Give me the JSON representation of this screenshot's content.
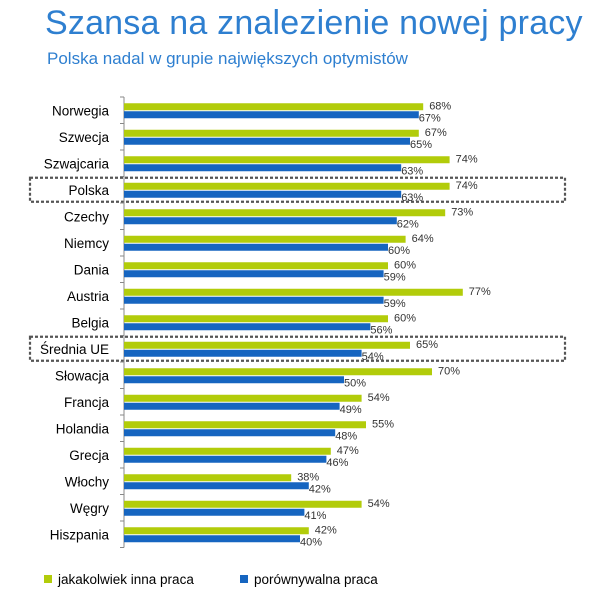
{
  "title": "Szansa na znalezienie nowej pracy",
  "subtitle": "Polska nadal w grupie największych optymistów",
  "colors": {
    "green": "#b2cc0a",
    "blue": "#1665c0",
    "title": "#2e7fd0"
  },
  "chart_data": {
    "type": "bar",
    "orientation": "horizontal",
    "categories": [
      "Norwegia",
      "Szwecja",
      "Szwajcaria",
      "Polska",
      "Czechy",
      "Niemcy",
      "Dania",
      "Austria",
      "Belgia",
      "Średnia UE",
      "Słowacja",
      "Francja",
      "Holandia",
      "Grecja",
      "Włochy",
      "Węgry",
      "Hiszpania"
    ],
    "series": [
      {
        "name": "jakakolwiek inna praca",
        "values": [
          68,
          67,
          74,
          74,
          73,
          64,
          60,
          77,
          60,
          65,
          70,
          54,
          55,
          47,
          38,
          54,
          42
        ]
      },
      {
        "name": "porównywalna praca",
        "values": [
          67,
          65,
          63,
          63,
          62,
          60,
          59,
          59,
          56,
          54,
          50,
          49,
          48,
          46,
          42,
          41,
          40
        ]
      }
    ],
    "value_suffix": "%",
    "highlighted": [
      "Polska",
      "Średnia UE"
    ],
    "legend_position": "bottom"
  }
}
